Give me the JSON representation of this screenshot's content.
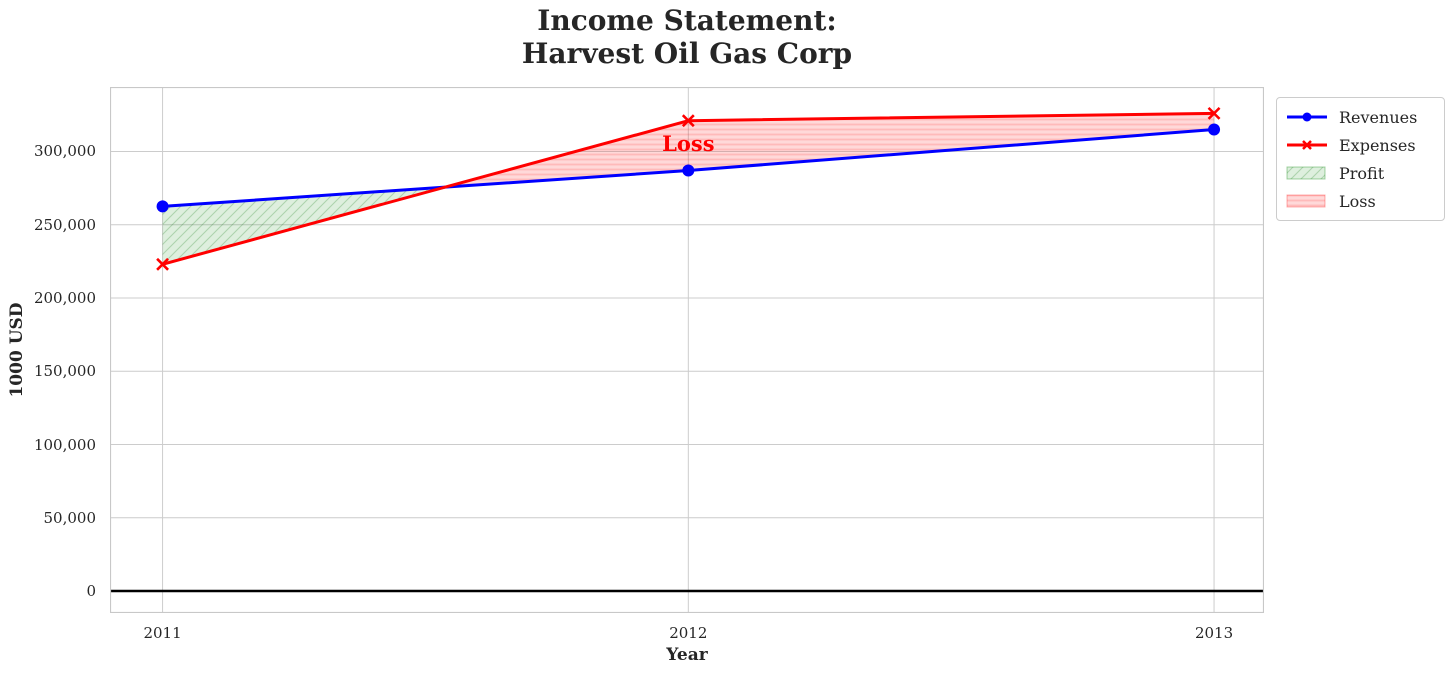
{
  "title": {
    "line1": "Income Statement:",
    "line2": "Harvest Oil Gas Corp"
  },
  "chart_data": {
    "type": "line",
    "title": "Income Statement: Harvest Oil Gas Corp",
    "xlabel": "Year",
    "ylabel": "1000 USD",
    "x": [
      2011,
      2012,
      2013
    ],
    "xtick_labels": [
      "2011",
      "2012",
      "2013"
    ],
    "series": [
      {
        "name": "Revenues",
        "color": "#0000ff",
        "marker": "circle",
        "values": [
          262500,
          287000,
          315000
        ]
      },
      {
        "name": "Expenses",
        "color": "#ff0000",
        "marker": "x",
        "values": [
          223000,
          321000,
          326000
        ]
      }
    ],
    "fills": [
      {
        "name": "Profit",
        "rule": "revenues_above_expenses",
        "hatch": "diagonal",
        "base_color": "#008000"
      },
      {
        "name": "Loss",
        "rule": "expenses_above_revenues",
        "hatch": "horizontal",
        "base_color": "#ff0000"
      }
    ],
    "yticks": [
      0,
      50000,
      100000,
      150000,
      200000,
      250000,
      300000
    ],
    "ytick_labels": [
      "0",
      "50,000",
      "100,000",
      "150,000",
      "200,000",
      "250,000",
      "300,000"
    ],
    "ylim": [
      -15000,
      344000
    ],
    "xlim": [
      2010.9,
      2013.095
    ],
    "grid": true,
    "zero_line_at": 0,
    "annotation": {
      "text": "Loss",
      "x": 2012,
      "y": 305000,
      "color": "#ff0000"
    },
    "legend": {
      "position": "outside-top-right",
      "entries": [
        "Revenues",
        "Expenses",
        "Profit",
        "Loss"
      ]
    }
  },
  "theme": {
    "revenues_color": "#0000ff",
    "expenses_color": "#ff0000",
    "profit_fill": "rgba(0,128,0,0.13)",
    "profit_hatch": "rgba(0,110,0,0.22)",
    "profit_edge": "rgba(0,128,0,0.35)",
    "loss_fill": "rgba(255,0,0,0.15)",
    "loss_hatch": "rgba(255,0,0,0.14)",
    "loss_edge": "rgba(255,0,0,0.30)",
    "grid_color": "#cccccc",
    "border_color": "#c8c8c8",
    "text_color": "#262626",
    "zero_line_color": "#000000",
    "background": "#ffffff"
  }
}
